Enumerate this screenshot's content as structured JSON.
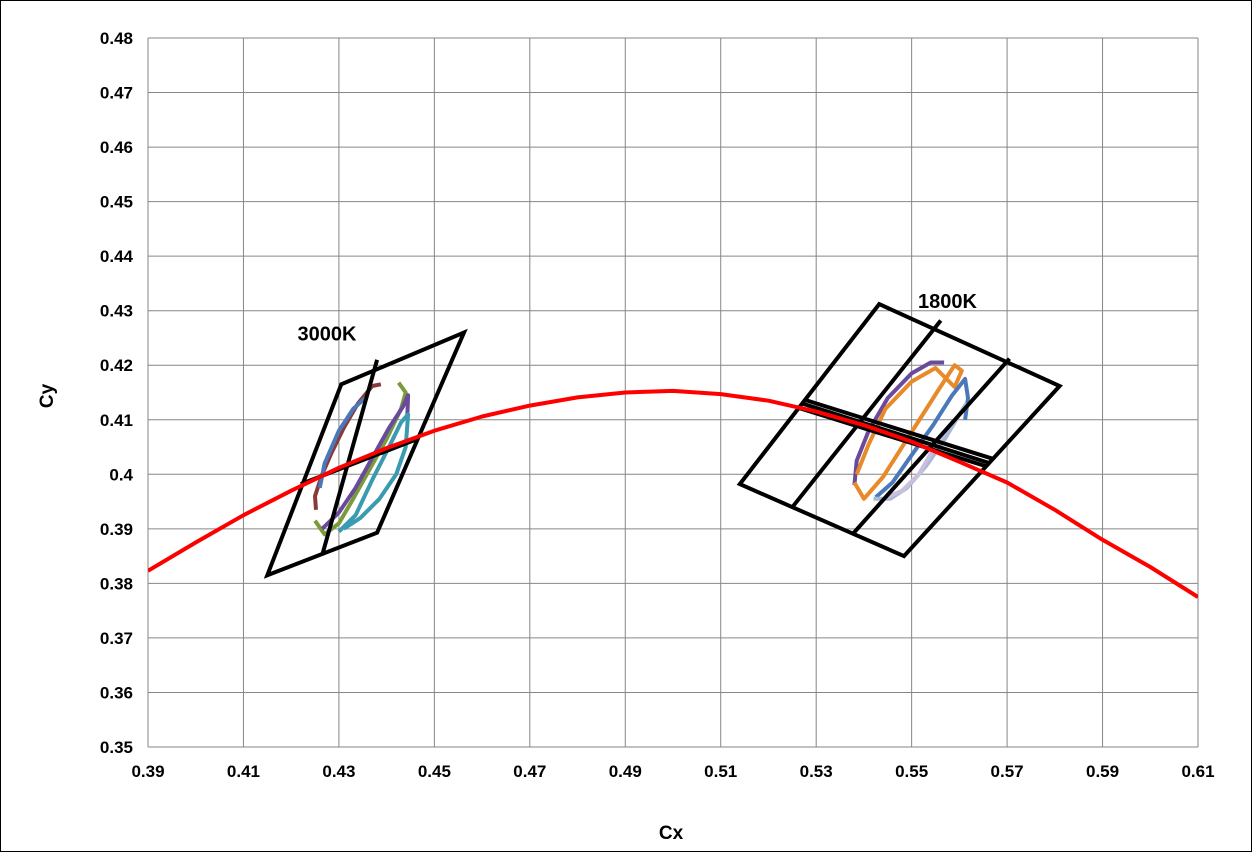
{
  "chart_data": {
    "type": "line",
    "xlabel": "Cx",
    "ylabel": "Cy",
    "xlim": [
      0.39,
      0.61
    ],
    "ylim": [
      0.35,
      0.48
    ],
    "xticks": [
      "0.39",
      "0.41",
      "0.43",
      "0.45",
      "0.47",
      "0.49",
      "0.51",
      "0.53",
      "0.55",
      "0.57",
      "0.59",
      "0.61"
    ],
    "yticks": [
      "0.35",
      "0.36",
      "0.37",
      "0.38",
      "0.39",
      "0.4",
      "0.41",
      "0.42",
      "0.43",
      "0.44",
      "0.45",
      "0.46",
      "0.47",
      "0.48"
    ],
    "grid": true,
    "annotations": [
      {
        "text": "3000K",
        "x": 0.4275,
        "y": 0.4245
      },
      {
        "text": "1800K",
        "x": 0.5575,
        "y": 0.4305
      }
    ],
    "colors": {
      "locus": "#ff0000",
      "box": "#000000",
      "grid": "#868686",
      "ellipses": [
        "#8b3a3a",
        "#7a9b3a",
        "#6a4a9a",
        "#3a9ab0",
        "#4a78b8",
        "#e8892a",
        "#a8b8d8",
        "#c8c0dc"
      ]
    },
    "series": [
      {
        "type": "curve",
        "color": "#ff0000",
        "x": [
          0.39,
          0.4,
          0.41,
          0.42,
          0.43,
          0.44,
          0.45,
          0.46,
          0.47,
          0.48,
          0.49,
          0.5,
          0.51,
          0.52,
          0.53,
          0.54,
          0.55,
          0.56,
          0.57,
          0.58,
          0.59,
          0.6,
          0.61
        ],
        "y": [
          0.3823,
          0.3875,
          0.3925,
          0.397,
          0.4012,
          0.4048,
          0.408,
          0.4106,
          0.4126,
          0.4141,
          0.415,
          0.4153,
          0.4147,
          0.4135,
          0.4115,
          0.409,
          0.406,
          0.4023,
          0.3985,
          0.3935,
          0.388,
          0.383,
          0.3775
        ]
      },
      {
        "type": "box",
        "color": "#000000",
        "outline": [
          [
            0.415,
            0.3815
          ],
          [
            0.438,
            0.3893
          ],
          [
            0.4562,
            0.426
          ],
          [
            0.4305,
            0.4165
          ]
        ],
        "lines": [
          [
            [
              0.4265,
              0.3852
            ],
            [
              0.438,
              0.421
            ]
          ],
          [
            [
              0.422,
              0.3982
            ],
            [
              0.4465,
              0.4065
            ]
          ]
        ]
      },
      {
        "type": "box",
        "color": "#000000",
        "outline": [
          [
            0.514,
            0.3982
          ],
          [
            0.5484,
            0.385
          ],
          [
            0.581,
            0.4162
          ],
          [
            0.5432,
            0.4312
          ]
        ],
        "lines": [
          [
            [
              0.5252,
              0.3942
            ],
            [
              0.5561,
              0.4282
            ]
          ],
          [
            [
              0.5377,
              0.3891
            ],
            [
              0.5705,
              0.4212
            ]
          ],
          [
            [
              0.527,
              0.413
            ],
            [
              0.5665,
              0.402
            ]
          ],
          [
            [
              0.5262,
              0.4122
            ],
            [
              0.5655,
              0.4015
            ]
          ],
          [
            [
              0.5278,
              0.4136
            ],
            [
              0.5672,
              0.4028
            ]
          ]
        ]
      },
      {
        "type": "ellipse",
        "color": "#8b3a3a",
        "points": [
          [
            0.4252,
            0.3935
          ],
          [
            0.425,
            0.396
          ],
          [
            0.4265,
            0.4
          ],
          [
            0.4285,
            0.404
          ],
          [
            0.431,
            0.4085
          ],
          [
            0.434,
            0.413
          ],
          [
            0.437,
            0.4162
          ],
          [
            0.4388,
            0.4165
          ]
        ]
      },
      {
        "type": "ellipse",
        "color": "#7a9b3a",
        "points": [
          [
            0.425,
            0.3915
          ],
          [
            0.427,
            0.389
          ],
          [
            0.43,
            0.391
          ],
          [
            0.433,
            0.3955
          ],
          [
            0.4365,
            0.401
          ],
          [
            0.44,
            0.4065
          ],
          [
            0.443,
            0.412
          ],
          [
            0.444,
            0.415
          ],
          [
            0.4425,
            0.4168
          ]
        ]
      },
      {
        "type": "ellipse",
        "color": "#6a4a9a",
        "points": [
          [
            0.4265,
            0.39
          ],
          [
            0.43,
            0.393
          ],
          [
            0.4335,
            0.3975
          ],
          [
            0.437,
            0.403
          ],
          [
            0.4405,
            0.4085
          ],
          [
            0.4435,
            0.4125
          ],
          [
            0.4445,
            0.4145
          ],
          [
            0.4443,
            0.41
          ]
        ]
      },
      {
        "type": "ellipse",
        "color": "#3a9ab0",
        "points": [
          [
            0.43,
            0.3895
          ],
          [
            0.4335,
            0.3925
          ],
          [
            0.437,
            0.399
          ],
          [
            0.4405,
            0.405
          ],
          [
            0.443,
            0.4095
          ],
          [
            0.4445,
            0.411
          ],
          [
            0.444,
            0.405
          ],
          [
            0.442,
            0.4
          ],
          [
            0.4385,
            0.3955
          ],
          [
            0.4345,
            0.392
          ],
          [
            0.431,
            0.39
          ]
        ]
      },
      {
        "type": "ellipse",
        "color": "#4a78b8",
        "points": [
          [
            0.426,
            0.3975
          ],
          [
            0.427,
            0.402
          ],
          [
            0.43,
            0.408
          ],
          [
            0.433,
            0.412
          ],
          [
            0.4355,
            0.414
          ]
        ]
      },
      {
        "type": "ellipse",
        "color": "#6a4a9a",
        "points": [
          [
            0.538,
            0.398
          ],
          [
            0.5385,
            0.4025
          ],
          [
            0.541,
            0.408
          ],
          [
            0.545,
            0.414
          ],
          [
            0.55,
            0.4185
          ],
          [
            0.554,
            0.4205
          ],
          [
            0.5568,
            0.4205
          ]
        ]
      },
      {
        "type": "ellipse",
        "color": "#e8892a",
        "points": [
          [
            0.538,
            0.3985
          ],
          [
            0.54,
            0.3955
          ],
          [
            0.544,
            0.3995
          ],
          [
            0.548,
            0.405
          ],
          [
            0.552,
            0.4105
          ],
          [
            0.556,
            0.416
          ],
          [
            0.559,
            0.42
          ],
          [
            0.5605,
            0.419
          ],
          [
            0.559,
            0.416
          ],
          [
            0.555,
            0.4195
          ],
          [
            0.55,
            0.417
          ],
          [
            0.5445,
            0.412
          ],
          [
            0.541,
            0.4055
          ],
          [
            0.5385,
            0.4
          ]
        ]
      },
      {
        "type": "ellipse",
        "color": "#4a78b8",
        "points": [
          [
            0.5425,
            0.3958
          ],
          [
            0.546,
            0.3985
          ],
          [
            0.55,
            0.4035
          ],
          [
            0.5545,
            0.409
          ],
          [
            0.5585,
            0.4145
          ],
          [
            0.5612,
            0.4175
          ],
          [
            0.5618,
            0.414
          ],
          [
            0.5612,
            0.41
          ]
        ]
      },
      {
        "type": "ellipse",
        "color": "#a8b8d8",
        "points": [
          [
            0.542,
            0.3955
          ],
          [
            0.5455,
            0.3955
          ],
          [
            0.549,
            0.3975
          ],
          [
            0.553,
            0.4015
          ],
          [
            0.557,
            0.4065
          ],
          [
            0.56,
            0.411
          ],
          [
            0.5615,
            0.413
          ]
        ]
      },
      {
        "type": "ellipse",
        "color": "#c8c0dc",
        "points": [
          [
            0.544,
            0.3955
          ],
          [
            0.548,
            0.397
          ],
          [
            0.5515,
            0.4
          ],
          [
            0.5545,
            0.4045
          ],
          [
            0.5575,
            0.4085
          ],
          [
            0.559,
            0.41
          ]
        ]
      }
    ]
  }
}
